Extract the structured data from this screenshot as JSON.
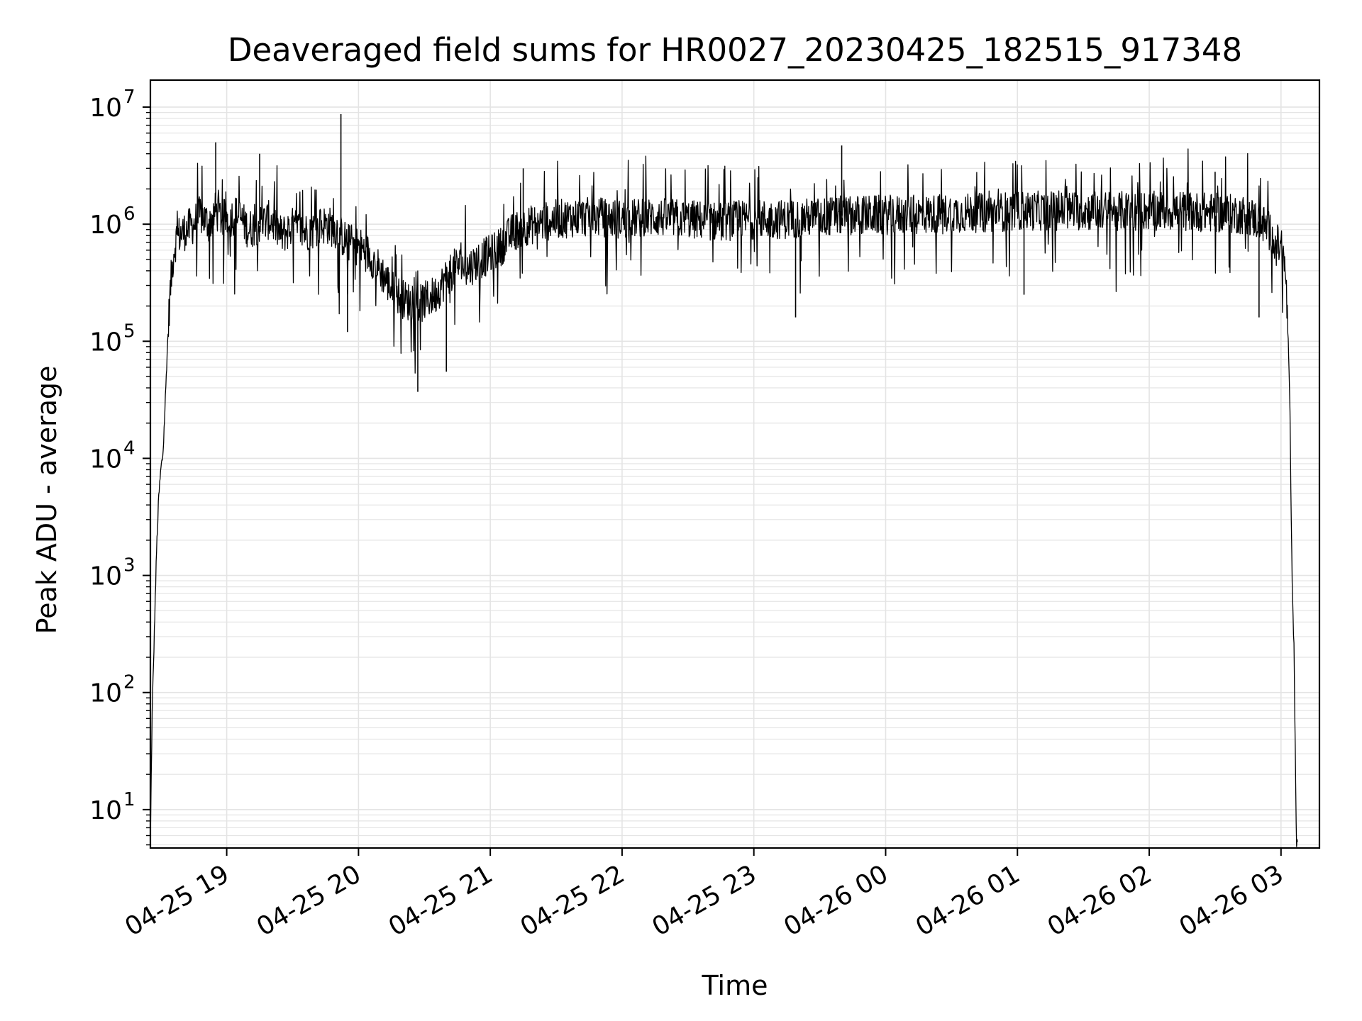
{
  "chart_data": {
    "type": "line",
    "title": "Deaveraged field sums for HR0027_20230425_182515_917348",
    "xlabel": "Time",
    "ylabel": "Peak ADU - average",
    "y_scale": "log",
    "ylim": [
      4.7,
      17000000
    ],
    "xlim": [
      "2023-04-25 18:25:15",
      "2023-04-26 03:17:30"
    ],
    "x_ticks": [
      "04-25 19",
      "04-25 20",
      "04-25 21",
      "04-25 22",
      "04-25 23",
      "04-26 00",
      "04-26 01",
      "04-26 02",
      "04-26 03"
    ],
    "x_tick_times": [
      "2023-04-25 19:00",
      "2023-04-25 20:00",
      "2023-04-25 21:00",
      "2023-04-25 22:00",
      "2023-04-25 23:00",
      "2023-04-26 00:00",
      "2023-04-26 01:00",
      "2023-04-26 02:00",
      "2023-04-26 03:00"
    ],
    "y_ticks": [
      {
        "value": 10,
        "base": "10",
        "exp": "1"
      },
      {
        "value": 100,
        "base": "10",
        "exp": "2"
      },
      {
        "value": 1000,
        "base": "10",
        "exp": "3"
      },
      {
        "value": 10000,
        "base": "10",
        "exp": "4"
      },
      {
        "value": 100000,
        "base": "10",
        "exp": "5"
      },
      {
        "value": 1000000,
        "base": "10",
        "exp": "6"
      },
      {
        "value": 10000000,
        "base": "10",
        "exp": "7"
      }
    ],
    "grid": true,
    "legend": false,
    "line_color": "#000000",
    "grid_color": "#e4e4e4",
    "series": [
      {
        "x": [
          "2023-04-25 18:25:15",
          "2023-04-25 18:26:00",
          "2023-04-25 18:27:00",
          "2023-04-25 18:28:00",
          "2023-04-25 18:29:00",
          "2023-04-25 18:30:00",
          "2023-04-25 18:31:00",
          "2023-04-25 18:32:00",
          "2023-04-25 18:33:00",
          "2023-04-25 18:34:00",
          "2023-04-25 18:35:00",
          "2023-04-25 18:36:00",
          "2023-04-25 18:37:00",
          "2023-04-25 18:38:00",
          "2023-04-25 18:40:00",
          "2023-04-25 18:42:00",
          "2023-04-25 18:45:00",
          "2023-04-25 18:48:00",
          "2023-04-25 18:52:00",
          "2023-04-25 18:55:00",
          "2023-04-25 18:58:00",
          "2023-04-25 19:05:00",
          "2023-04-25 19:10:00",
          "2023-04-25 19:15:00",
          "2023-04-25 19:20:00",
          "2023-04-25 19:25:00",
          "2023-04-25 19:30:00",
          "2023-04-25 19:35:00",
          "2023-04-25 19:40:00",
          "2023-04-25 19:45:00",
          "2023-04-25 19:50:00",
          "2023-04-25 19:52:00",
          "2023-04-25 19:55:00",
          "2023-04-25 20:00:00",
          "2023-04-25 20:05:00",
          "2023-04-25 20:10:00",
          "2023-04-25 20:15:00",
          "2023-04-25 20:20:00",
          "2023-04-25 20:25:00",
          "2023-04-25 20:27:00",
          "2023-04-25 20:30:00",
          "2023-04-25 20:35:00",
          "2023-04-25 20:40:00",
          "2023-04-25 20:45:00",
          "2023-04-25 20:50:00",
          "2023-04-25 20:55:00",
          "2023-04-25 21:00:00",
          "2023-04-25 21:05:00",
          "2023-04-25 21:10:00",
          "2023-04-25 21:15:00",
          "2023-04-25 21:20:00",
          "2023-04-25 21:25:00",
          "2023-04-25 21:30:00",
          "2023-04-25 21:40:00",
          "2023-04-25 21:50:00",
          "2023-04-25 22:00:00",
          "2023-04-25 22:15:00",
          "2023-04-25 22:30:00",
          "2023-04-25 22:45:00",
          "2023-04-25 23:00:00",
          "2023-04-25 23:15:00",
          "2023-04-25 23:30:00",
          "2023-04-25 23:45:00",
          "2023-04-26 00:00:00",
          "2023-04-26 00:15:00",
          "2023-04-26 00:30:00",
          "2023-04-26 00:45:00",
          "2023-04-26 01:00:00",
          "2023-04-26 01:15:00",
          "2023-04-26 01:30:00",
          "2023-04-26 01:45:00",
          "2023-04-26 02:00:00",
          "2023-04-26 02:15:00",
          "2023-04-26 02:30:00",
          "2023-04-26 02:45:00",
          "2023-04-26 02:52:00",
          "2023-04-26 02:55:00",
          "2023-04-26 02:58:00",
          "2023-04-26 03:00:00",
          "2023-04-26 03:01:00",
          "2023-04-26 03:02:00",
          "2023-04-26 03:03:00",
          "2023-04-26 03:04:00",
          "2023-04-26 03:05:00",
          "2023-04-26 03:06:00",
          "2023-04-26 03:07:00",
          "2023-04-26 03:07:30"
        ],
        "values": [
          5,
          60,
          300,
          1500,
          4500,
          8000,
          11000,
          30000,
          90000,
          220000,
          400000,
          600000,
          750000,
          800000,
          850000,
          900000,
          1000000,
          1200000,
          1000000,
          1300000,
          1100000,
          1200000,
          900000,
          1000000,
          1100000,
          800000,
          950000,
          850000,
          900000,
          1000000,
          900000,
          800000,
          700000,
          650000,
          550000,
          400000,
          280000,
          230000,
          210000,
          200000,
          220000,
          250000,
          350000,
          450000,
          420000,
          500000,
          550000,
          650000,
          850000,
          950000,
          1000000,
          1050000,
          1100000,
          1150000,
          1150000,
          1100000,
          1150000,
          1100000,
          1050000,
          1100000,
          1100000,
          1150000,
          1200000,
          1200000,
          1200000,
          1250000,
          1250000,
          1300000,
          1300000,
          1300000,
          1300000,
          1300000,
          1300000,
          1250000,
          1200000,
          1000000,
          850000,
          700000,
          600000,
          500000,
          400000,
          150000,
          30000,
          1000,
          200,
          5,
          5
        ],
        "spikes_max": [
          [
            "2023-04-25 18:55:00",
            5000000
          ],
          [
            "2023-04-25 19:52:00",
            8700000
          ],
          [
            "2023-04-25 23:40:00",
            4700000
          ],
          [
            "2023-04-25 21:15:00",
            3000000
          ],
          [
            "2023-04-25 19:15:00",
            4000000
          ],
          [
            "2023-04-26 02:30:00",
            2800000
          ]
        ],
        "spikes_min": [
          [
            "2023-04-25 20:27:00",
            37000
          ],
          [
            "2023-04-25 19:55:00",
            120000
          ],
          [
            "2023-04-25 23:19:00",
            160000
          ],
          [
            "2023-04-26 02:50:00",
            160000
          ],
          [
            "2023-04-26 01:03:00",
            250000
          ],
          [
            "2023-04-25 20:40:00",
            55000
          ]
        ]
      }
    ]
  }
}
